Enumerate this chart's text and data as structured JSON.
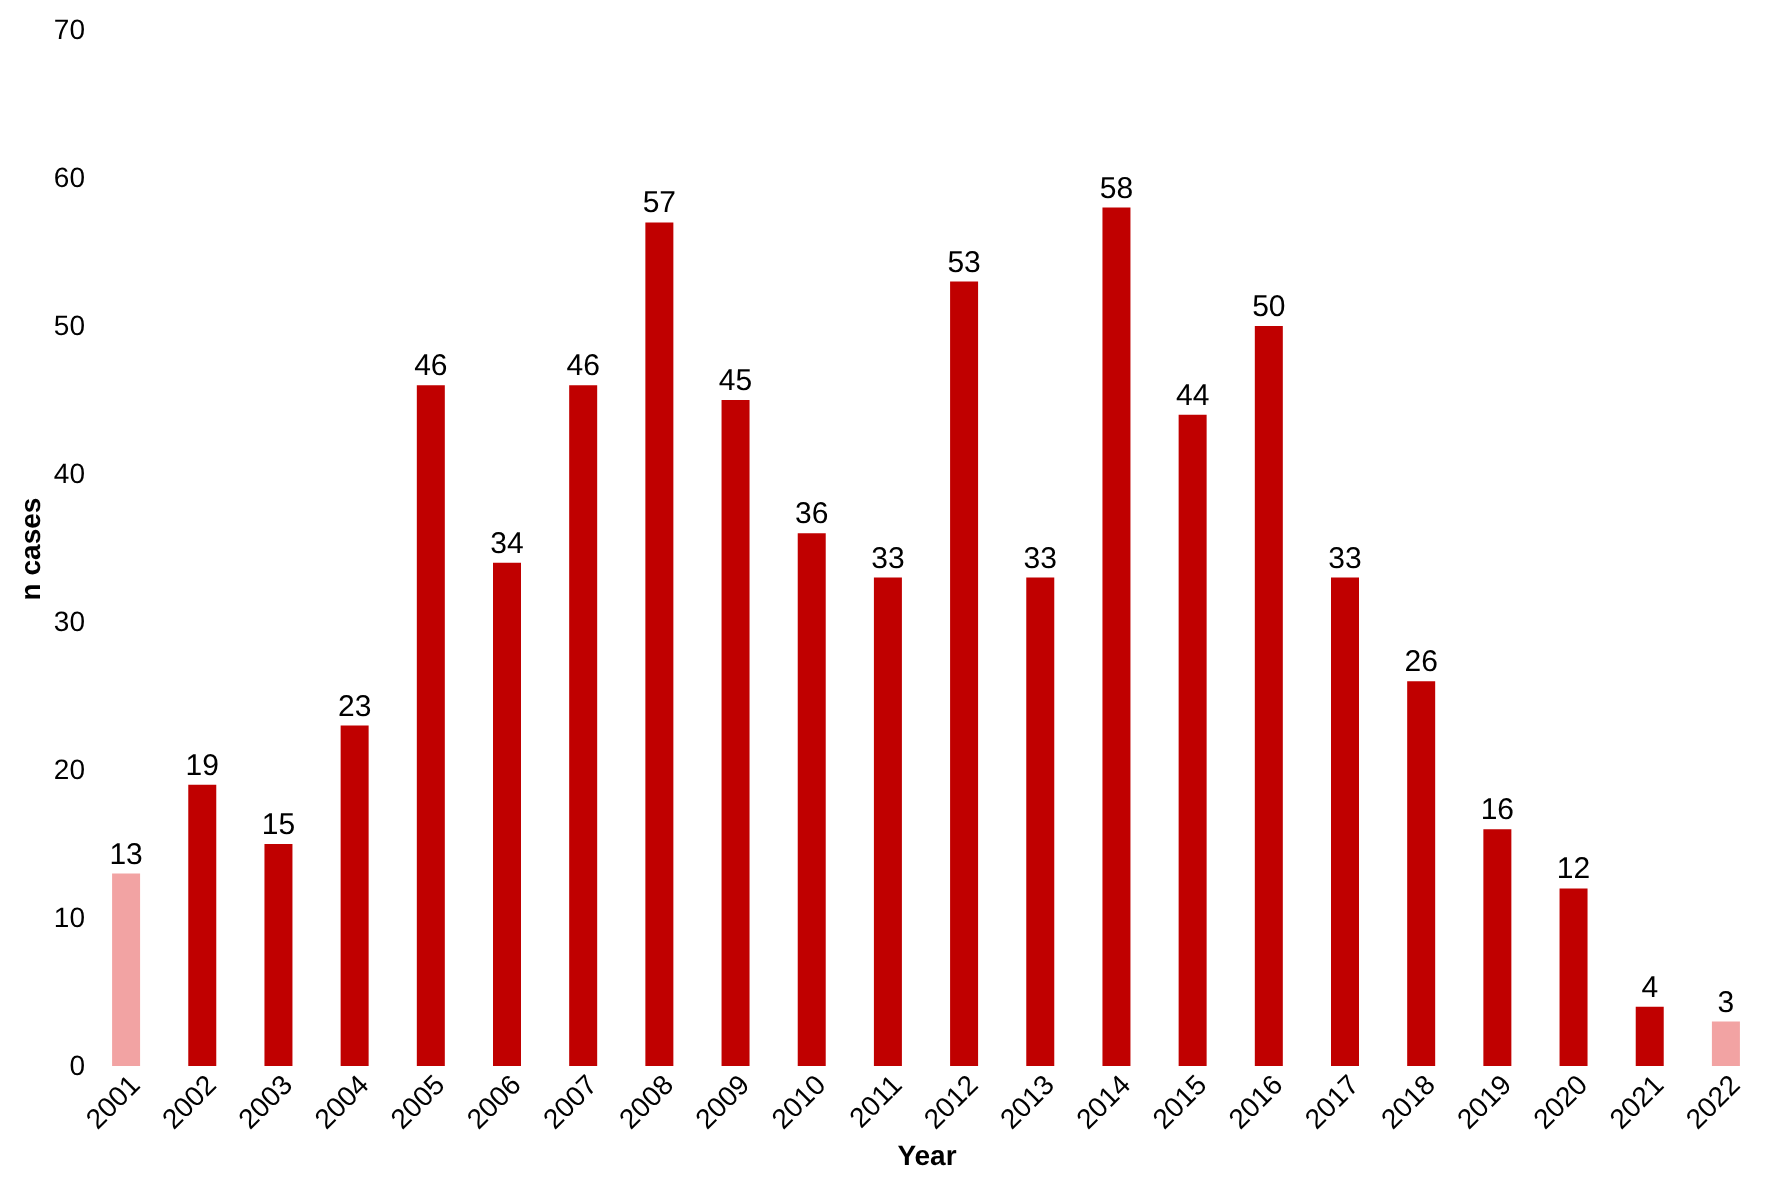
{
  "chart_data": {
    "type": "bar",
    "xlabel": "Year",
    "ylabel": "n cases",
    "categories": [
      "2001",
      "2002",
      "2003",
      "2004",
      "2005",
      "2006",
      "2007",
      "2008",
      "2009",
      "2010",
      "2011",
      "2012",
      "2013",
      "2014",
      "2015",
      "2016",
      "2017",
      "2018",
      "2019",
      "2020",
      "2021",
      "2022"
    ],
    "values": [
      13,
      19,
      15,
      23,
      46,
      34,
      46,
      57,
      45,
      36,
      33,
      53,
      33,
      58,
      44,
      50,
      33,
      26,
      16,
      12,
      4,
      3
    ],
    "colors": [
      "#f2a3a3",
      "#c00000",
      "#c00000",
      "#c00000",
      "#c00000",
      "#c00000",
      "#c00000",
      "#c00000",
      "#c00000",
      "#c00000",
      "#c00000",
      "#c00000",
      "#c00000",
      "#c00000",
      "#c00000",
      "#c00000",
      "#c00000",
      "#c00000",
      "#c00000",
      "#c00000",
      "#c00000",
      "#f2a3a3"
    ],
    "ylim": [
      0,
      70
    ],
    "yticks": [
      0,
      10,
      20,
      30,
      40,
      50,
      60,
      70
    ],
    "grid": false,
    "data_labels": true
  }
}
